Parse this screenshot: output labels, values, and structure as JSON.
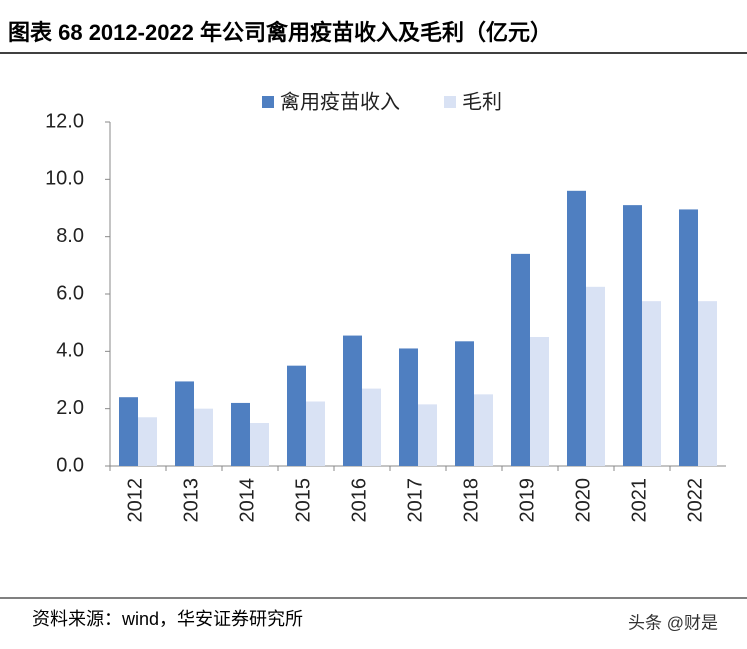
{
  "chart_data": {
    "type": "bar",
    "title": "图表 68 2012-2022 年公司禽用疫苗收入及毛利（亿元）",
    "categories": [
      "2012",
      "2013",
      "2014",
      "2015",
      "2016",
      "2017",
      "2018",
      "2019",
      "2020",
      "2021",
      "2022"
    ],
    "series": [
      {
        "name": "禽用疫苗收入",
        "color": "#4f7fc1",
        "values": [
          2.4,
          2.95,
          2.2,
          3.5,
          4.55,
          4.1,
          4.35,
          7.4,
          9.6,
          9.1,
          8.95
        ]
      },
      {
        "name": "毛利",
        "color": "#d9e2f4",
        "values": [
          1.7,
          2.0,
          1.5,
          2.25,
          2.7,
          2.15,
          2.5,
          4.5,
          6.25,
          5.75,
          5.75
        ]
      }
    ],
    "ylim": [
      0,
      12
    ],
    "yticks": [
      {
        "value": 0,
        "label": "0.0"
      },
      {
        "value": 2,
        "label": "2.0"
      },
      {
        "value": 4,
        "label": "4.0"
      },
      {
        "value": 6,
        "label": "6.0"
      },
      {
        "value": 8,
        "label": "8.0"
      },
      {
        "value": 10,
        "label": "10.0"
      },
      {
        "value": 12,
        "label": "12.0"
      }
    ],
    "grid": false,
    "legend": "top",
    "source": "资料来源：wind，华安证券研究所",
    "watermark": "头条 @财是"
  }
}
